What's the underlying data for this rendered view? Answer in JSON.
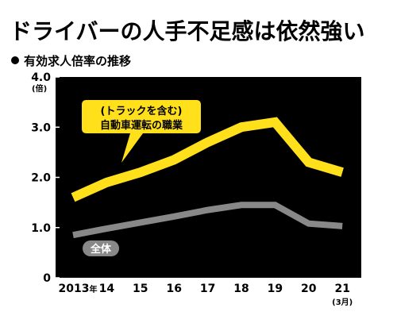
{
  "title": "ドライバーの人手不足感は依然強い",
  "subtitle": "有効求人倍率の推移",
  "chart_data": {
    "type": "line",
    "x": [
      "2013",
      "14",
      "15",
      "16",
      "17",
      "18",
      "19",
      "20",
      "21"
    ],
    "x_first_suffix": "年",
    "x_last_note": "(3月)",
    "ylabel": "(倍)",
    "ylim": [
      0,
      4.0
    ],
    "yticks": [
      "0",
      "1.0",
      "2.0",
      "3.0",
      "4.0"
    ],
    "grid": false,
    "series": [
      {
        "name": "(トラックを含む)自動車運転の職業",
        "name_line1": "(トラックを含む)",
        "name_line2": "自動車運転の職業",
        "values": [
          1.6,
          1.9,
          2.1,
          2.35,
          2.7,
          3.0,
          3.1,
          2.3,
          2.1
        ],
        "color": "#ffe01a"
      },
      {
        "name": "全体",
        "values": [
          0.85,
          0.98,
          1.1,
          1.22,
          1.35,
          1.45,
          1.45,
          1.08,
          1.03
        ],
        "color": "#888888"
      }
    ],
    "background": "#000000"
  }
}
